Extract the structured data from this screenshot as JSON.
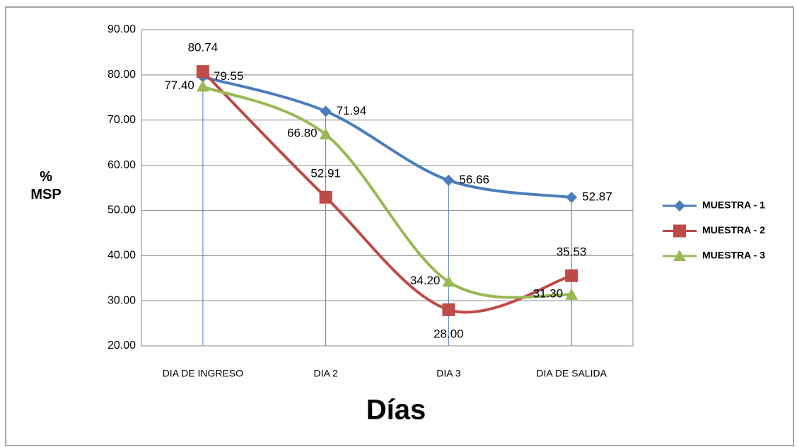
{
  "chart_data": {
    "type": "line",
    "smooth": true,
    "drop_lines": true,
    "y_label": "% MSP",
    "x_label": "Días",
    "categories": [
      "DIA DE INGRESO",
      "DIA 2",
      "DIA 3",
      "DIA DE SALIDA"
    ],
    "series": [
      {
        "name": "MUESTRA - 1",
        "color": "#4a7ebb",
        "marker": "diamond",
        "values": [
          79.55,
          71.94,
          56.66,
          52.87
        ],
        "value_labels": [
          "79.55",
          "71.94",
          "56.66",
          "52.87"
        ]
      },
      {
        "name": "MUESTRA - 2",
        "color": "#be4b48",
        "marker": "square",
        "values": [
          80.74,
          52.91,
          28.0,
          35.53
        ],
        "value_labels": [
          "80.74",
          "52.91",
          "28.00",
          "35.53"
        ]
      },
      {
        "name": "MUESTRA - 3",
        "color": "#98b954",
        "marker": "triangle",
        "values": [
          77.4,
          66.8,
          34.2,
          31.3
        ],
        "value_labels": [
          "77.40",
          "66.80",
          "34.20",
          "31.30"
        ]
      }
    ],
    "ylim": [
      20,
      90
    ],
    "yticks": [
      {
        "value": 20,
        "label": "20.00"
      },
      {
        "value": 30,
        "label": "30.00"
      },
      {
        "value": 40,
        "label": "40.00"
      },
      {
        "value": 50,
        "label": "50.00"
      },
      {
        "value": 60,
        "label": "60.00"
      },
      {
        "value": 70,
        "label": "70.00"
      },
      {
        "value": 80,
        "label": "80.00"
      },
      {
        "value": 90,
        "label": "90.00"
      }
    ],
    "grid": true,
    "legend": "right"
  }
}
